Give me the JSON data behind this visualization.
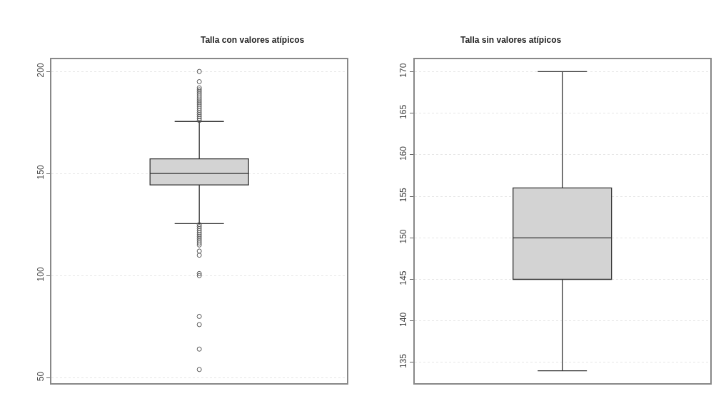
{
  "chart_data": [
    {
      "type": "box",
      "title": "Talla con valores atípicos",
      "categories": [
        null
      ],
      "ylim": [
        47.3,
        206
      ],
      "yticks": [
        50,
        100,
        150,
        200
      ],
      "grid": "y",
      "marker": "circle",
      "boxes": [
        {
          "low": 125.5,
          "q1": 144.4,
          "median": 150,
          "q3": 157.2,
          "high": 175.5,
          "outliers": [
            176,
            177,
            178,
            179,
            180,
            181,
            182,
            183,
            184,
            185,
            186,
            187,
            188,
            189,
            190,
            191,
            192,
            195,
            200,
            125,
            124,
            123,
            122,
            121,
            120,
            119,
            118,
            117,
            116,
            115,
            112,
            110,
            101,
            100,
            80,
            76,
            64,
            54
          ]
        }
      ]
    },
    {
      "type": "box",
      "title": "Talla sin valores atípicos",
      "categories": [
        null
      ],
      "ylim": [
        132.5,
        171.5
      ],
      "yticks": [
        135,
        140,
        145,
        150,
        155,
        160,
        165,
        170
      ],
      "grid": "y",
      "boxes": [
        {
          "low": 134,
          "q1": 145,
          "median": 150,
          "q3": 156,
          "high": 170
        }
      ]
    }
  ]
}
